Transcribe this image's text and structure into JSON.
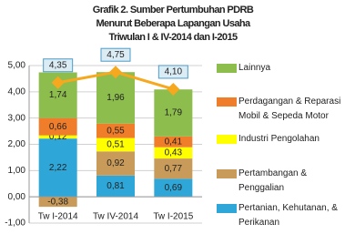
{
  "chart_data": {
    "type": "stacked-bar",
    "title": [
      "Grafik 2. Sumber Pertumbuhan PDRB",
      "Menurut Beberapa Lapangan Usaha",
      "Triwulan I & IV-2014 dan I-2015"
    ],
    "categories": [
      "Tw I-2014",
      "Tw IV-2014",
      "Tw I-2015"
    ],
    "series": [
      {
        "name": "Pertanian, Kehutanan, & Perikanan",
        "color": "#2ea7d8",
        "values": [
          2.22,
          0.81,
          0.69
        ],
        "value_labels": [
          "2,22",
          "0,81",
          "0,69"
        ]
      },
      {
        "name": "Pertambangan & Penggalian",
        "color": "#c99b5b",
        "values": [
          -0.38,
          0.92,
          0.77
        ],
        "value_labels": [
          "-0,38",
          "0,92",
          "0,77"
        ]
      },
      {
        "name": "Industri Pengolahan",
        "color": "#ffff00",
        "values": [
          0.12,
          0.51,
          0.43
        ],
        "value_labels": [
          "0,12",
          "0,51",
          "0,43"
        ]
      },
      {
        "name": "Perdagangan & Reparasi Mobil & Sepeda Motor",
        "color": "#f07d2a",
        "values": [
          0.66,
          0.55,
          0.41
        ],
        "value_labels": [
          "0,66",
          "0,55",
          "0,41"
        ]
      },
      {
        "name": "Lainnya",
        "color": "#8dbd4c",
        "values": [
          1.74,
          1.96,
          1.79
        ],
        "value_labels": [
          "1,74",
          "1,96",
          "1,79"
        ]
      }
    ],
    "total": {
      "type": "line",
      "color": "#f6a81e",
      "values": [
        4.35,
        4.75,
        4.1
      ],
      "value_labels": [
        "4,35",
        "4,75",
        "4,10"
      ]
    },
    "ylim": [
      -1,
      5
    ],
    "yticks": [
      {
        "value": -1,
        "label": "-1,00"
      },
      {
        "value": 0,
        "label": "0,00"
      },
      {
        "value": 1,
        "label": "1,00"
      },
      {
        "value": 2,
        "label": "2,00"
      },
      {
        "value": 3,
        "label": "3,00"
      },
      {
        "value": 4,
        "label": "4,00"
      },
      {
        "value": 5,
        "label": "5,00"
      }
    ],
    "grid": true
  }
}
